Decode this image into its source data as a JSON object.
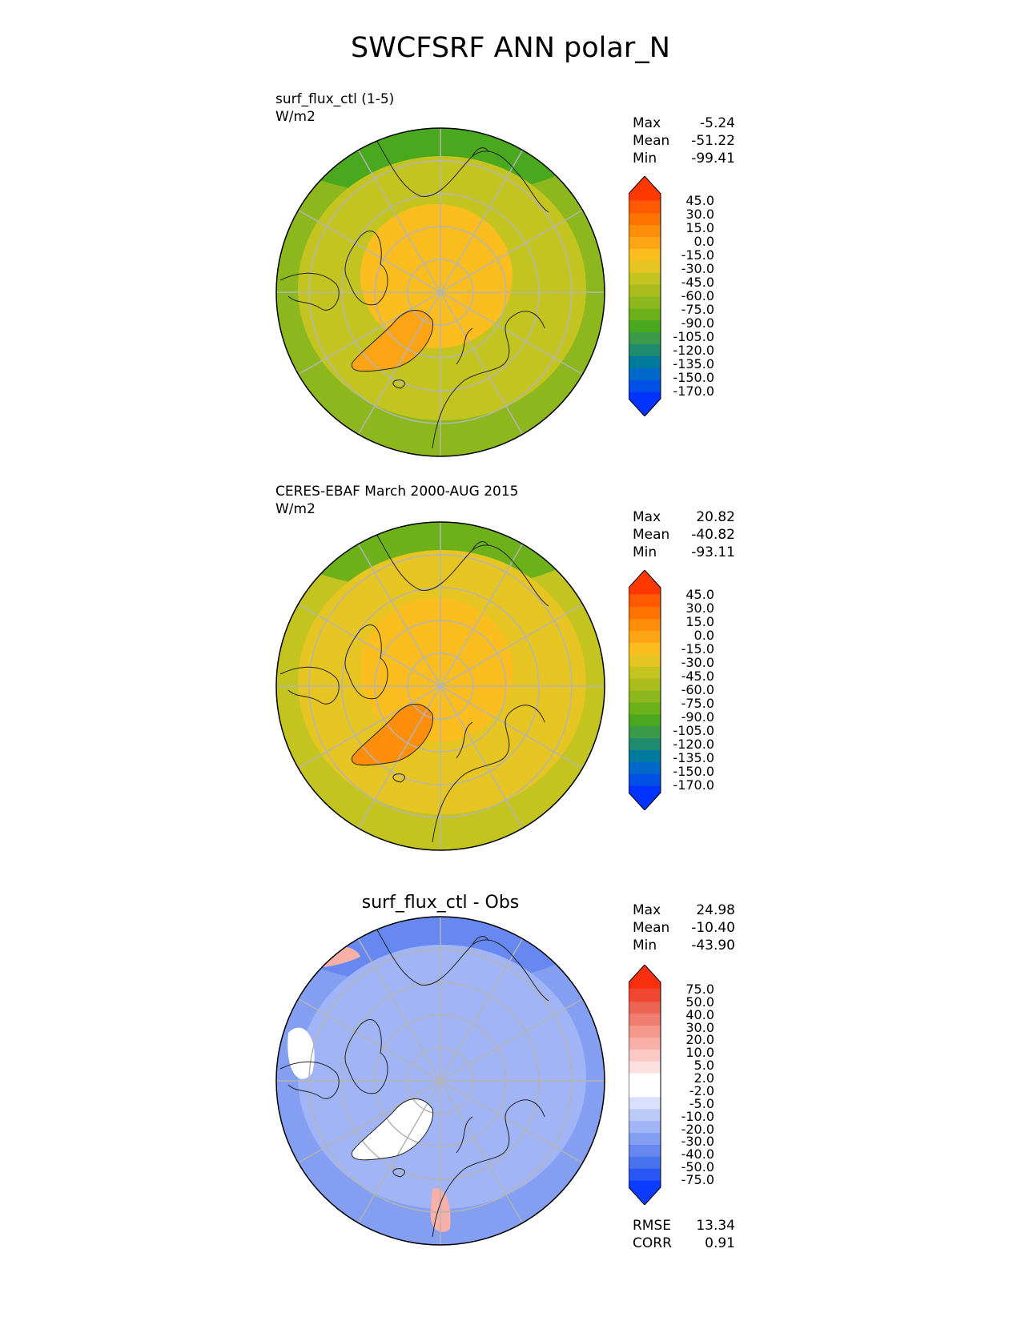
{
  "title": "SWCFSRF ANN polar_N",
  "panels": [
    {
      "label_line1": "surf_flux_ctl (1-5)",
      "label_line2": "W/m2",
      "stats": {
        "max_label": "Max",
        "max": "-5.24",
        "mean_label": "Mean",
        "mean": "-51.22",
        "min_label": "Min",
        "min": "-99.41"
      },
      "colorbar_colors": [
        "#0033ff",
        "#0050e6",
        "#0068c8",
        "#007a9c",
        "#1e8a6e",
        "#3a9a4a",
        "#4aa81e",
        "#6cb01a",
        "#8cb81e",
        "#a8bc1c",
        "#c4c420",
        "#e6c422",
        "#fcbe1e",
        "#ffa414",
        "#ff8e0a",
        "#ff7400",
        "#ff5a00",
        "#ff3800"
      ],
      "colorbar_labels": [
        "45.0",
        "30.0",
        "15.0",
        "0.0",
        "-15.0",
        "-30.0",
        "-45.0",
        "-60.0",
        "-75.0",
        "-90.0",
        "-105.0",
        "-120.0",
        "-135.0",
        "-150.0",
        "-170.0"
      ],
      "map_colors": {
        "outer": "#8cb81e",
        "ring": "#c4c420",
        "inner": "#fcbe1e",
        "greenland": "#ffa414",
        "pacific": "#4aa81e"
      }
    },
    {
      "label_line1": "CERES-EBAF March 2000-AUG 2015",
      "label_line2": "W/m2",
      "stats": {
        "max_label": "Max",
        "max": "20.82",
        "mean_label": "Mean",
        "mean": "-40.82",
        "min_label": "Min",
        "min": "-93.11"
      },
      "colorbar_colors": [
        "#0033ff",
        "#0050e6",
        "#0068c8",
        "#007a9c",
        "#1e8a6e",
        "#3a9a4a",
        "#4aa81e",
        "#6cb01a",
        "#8cb81e",
        "#a8bc1c",
        "#c4c420",
        "#e6c422",
        "#fcbe1e",
        "#ffa414",
        "#ff8e0a",
        "#ff7400",
        "#ff5a00",
        "#ff3800"
      ],
      "colorbar_labels": [
        "45.0",
        "30.0",
        "15.0",
        "0.0",
        "-15.0",
        "-30.0",
        "-45.0",
        "-60.0",
        "-75.0",
        "-90.0",
        "-105.0",
        "-120.0",
        "-135.0",
        "-150.0",
        "-170.0"
      ],
      "map_colors": {
        "outer": "#c4c420",
        "ring": "#e6c422",
        "inner": "#fcbe1e",
        "greenland": "#ff8e0a",
        "pacific": "#6cb01a"
      }
    },
    {
      "center_title": "surf_flux_ctl - Obs",
      "stats": {
        "max_label": "Max",
        "max": "24.98",
        "mean_label": "Mean",
        "mean": "-10.40",
        "min_label": "Min",
        "min": "-43.90"
      },
      "colorbar_colors": [
        "#0a3cff",
        "#2a56f4",
        "#4872ee",
        "#6688f0",
        "#849ef2",
        "#a0b4f6",
        "#bccaf8",
        "#d8e0fc",
        "#ffffff",
        "#ffffff",
        "#fde0e0",
        "#fcc8c4",
        "#f8b0a8",
        "#f4988c",
        "#f07e70",
        "#ec6454",
        "#f04830",
        "#f83010"
      ],
      "colorbar_labels": [
        "75.0",
        "50.0",
        "40.0",
        "30.0",
        "20.0",
        "10.0",
        "5.0",
        "2.0",
        "-2.0",
        "-5.0",
        "-10.0",
        "-20.0",
        "-30.0",
        "-40.0",
        "-50.0",
        "-75.0"
      ],
      "map_colors": {
        "outer": "#849ef2",
        "ring": "#a0b4f6",
        "inner": "#a0b4f6",
        "greenland": "#ffffff",
        "pacific": "#6688f0"
      },
      "extra_stats": {
        "rmse_label": "RMSE",
        "rmse": "13.34",
        "corr_label": "CORR",
        "corr": "0.91"
      }
    }
  ]
}
